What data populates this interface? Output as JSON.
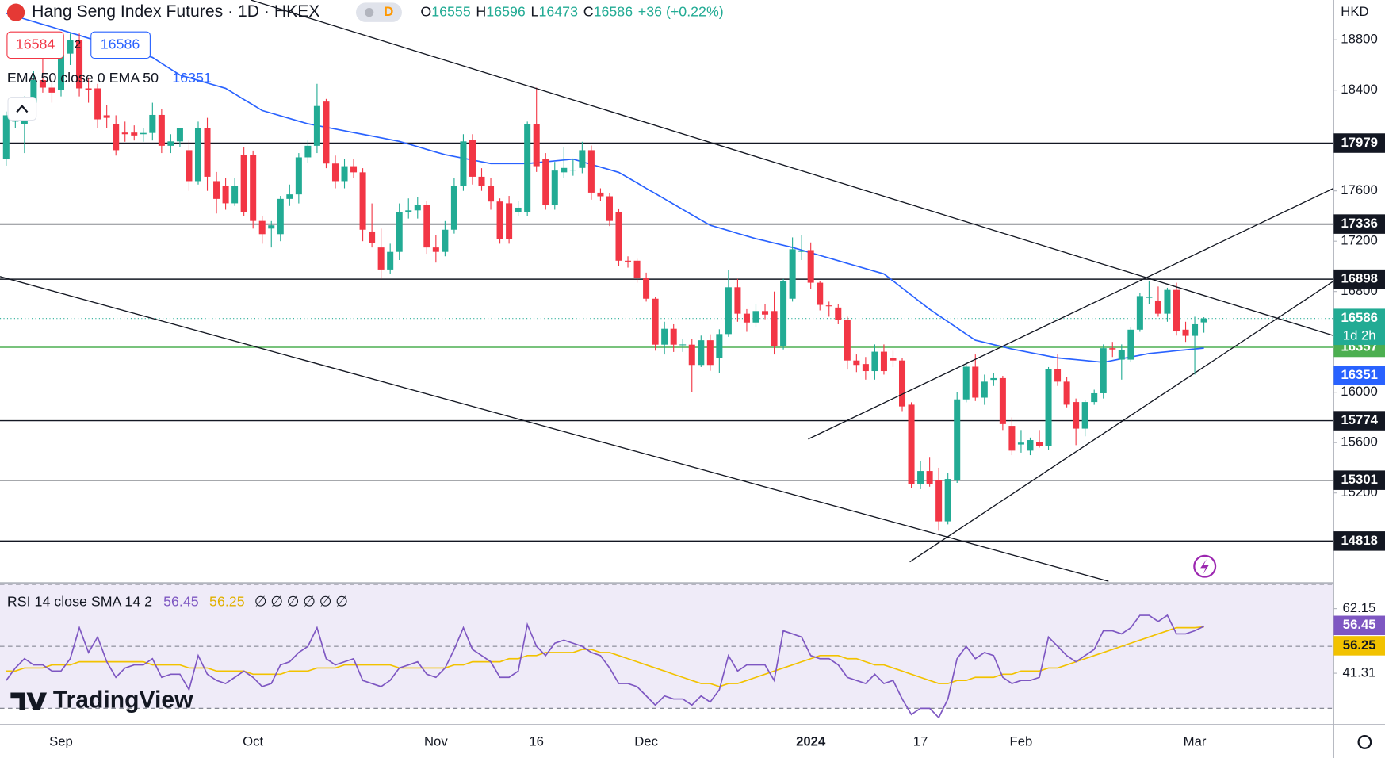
{
  "chart_data": {
    "type": "candlestick",
    "title": "Hang Seng Index Futures · 1D · HKEX",
    "interval_badge": "D",
    "ohlc_letters": [
      "O",
      "H",
      "L",
      "C"
    ],
    "change": "+36 (+0.22%)",
    "bid": 16584,
    "spread": 2,
    "ask": 16586,
    "currency": "HKD",
    "countdown": "1d 2h",
    "branding": "TradingView",
    "up_color": "#22ab94",
    "down_color": "#f23645",
    "ylim": [
      14498,
      19116
    ],
    "yticks": [
      18800,
      18400,
      17600,
      17200,
      16800,
      16000,
      15600,
      15200
    ],
    "levels": [
      17979,
      17336,
      16898,
      15774,
      15301,
      14818
    ],
    "level_color": "#131722",
    "support": 16357,
    "support_color": "#4caf50",
    "categories": [
      null,
      null,
      null,
      null,
      null,
      null,
      "Sep",
      null,
      null,
      null,
      null,
      null,
      null,
      null,
      null,
      null,
      null,
      null,
      null,
      null,
      null,
      null,
      null,
      null,
      null,
      null,
      null,
      "Oct",
      null,
      null,
      null,
      null,
      null,
      null,
      null,
      null,
      null,
      null,
      null,
      null,
      null,
      null,
      null,
      null,
      null,
      null,
      null,
      "Nov",
      null,
      null,
      null,
      null,
      null,
      null,
      null,
      null,
      null,
      null,
      "16",
      null,
      null,
      null,
      null,
      null,
      null,
      null,
      null,
      null,
      null,
      null,
      "Dec",
      null,
      null,
      null,
      null,
      null,
      null,
      null,
      null,
      null,
      null,
      null,
      null,
      null,
      null,
      null,
      null,
      null,
      "2024",
      null,
      null,
      null,
      null,
      null,
      null,
      null,
      null,
      null,
      null,
      null,
      "17",
      null,
      null,
      null,
      null,
      null,
      null,
      null,
      null,
      null,
      null,
      "Feb",
      null,
      null,
      null,
      null,
      null,
      null,
      null,
      null,
      null,
      null,
      null,
      null,
      null,
      null,
      null,
      null,
      null,
      null,
      "Mar",
      null
    ],
    "ohlc": [
      [
        17850,
        18230,
        17800,
        18200
      ],
      [
        18150,
        18300,
        18100,
        18250
      ],
      [
        18130,
        18350,
        17900,
        18300
      ],
      [
        18300,
        18550,
        18250,
        18480
      ],
      [
        18480,
        18650,
        18380,
        18420
      ],
      [
        18420,
        18500,
        18300,
        18380
      ],
      [
        18400,
        18720,
        18350,
        18680
      ],
      [
        18690,
        18850,
        18600,
        18800
      ],
      [
        18800,
        18850,
        18350,
        18414
      ],
      [
        18414,
        18500,
        18300,
        18400
      ],
      [
        18414,
        18450,
        18100,
        18168
      ],
      [
        18200,
        18280,
        18100,
        18180
      ],
      [
        18133,
        18200,
        17880,
        17923
      ],
      [
        18063,
        18150,
        17990,
        18050
      ],
      [
        18063,
        18120,
        18000,
        18040
      ],
      [
        18050,
        18100,
        17990,
        18060
      ],
      [
        18060,
        18300,
        18000,
        18203
      ],
      [
        18203,
        18250,
        17900,
        17958
      ],
      [
        17958,
        18050,
        17900,
        17993
      ],
      [
        17993,
        18100,
        17950,
        18098
      ],
      [
        17923,
        18000,
        17600,
        17677
      ],
      [
        17677,
        18150,
        17650,
        18098
      ],
      [
        18098,
        18180,
        17600,
        17712
      ],
      [
        17677,
        17750,
        17420,
        17536
      ],
      [
        17642,
        17700,
        17450,
        17501
      ],
      [
        17501,
        17700,
        17480,
        17642
      ],
      [
        17887,
        17950,
        17400,
        17431
      ],
      [
        17887,
        17920,
        17300,
        17361
      ],
      [
        17361,
        17400,
        17180,
        17256
      ],
      [
        17300,
        17360,
        17150,
        17326
      ],
      [
        17256,
        17560,
        17200,
        17536
      ],
      [
        17536,
        17650,
        17480,
        17572
      ],
      [
        17572,
        17900,
        17500,
        17866
      ],
      [
        17866,
        18000,
        17820,
        17958
      ],
      [
        17958,
        18450,
        17900,
        18274
      ],
      [
        18309,
        18330,
        17780,
        17817
      ],
      [
        17817,
        17880,
        17620,
        17677
      ],
      [
        17677,
        17850,
        17620,
        17796
      ],
      [
        17796,
        17850,
        17700,
        17747
      ],
      [
        17747,
        17780,
        17200,
        17291
      ],
      [
        17277,
        17500,
        17150,
        17185
      ],
      [
        17150,
        17300,
        16900,
        16975
      ],
      [
        16975,
        17180,
        16940,
        17115
      ],
      [
        17115,
        17500,
        17050,
        17431
      ],
      [
        17431,
        17540,
        17380,
        17445
      ],
      [
        17445,
        17550,
        17380,
        17487
      ],
      [
        17487,
        17520,
        17100,
        17150
      ],
      [
        17150,
        17250,
        17030,
        17115
      ],
      [
        17115,
        17360,
        17080,
        17291
      ],
      [
        17291,
        17700,
        17260,
        17642
      ],
      [
        17642,
        18050,
        17600,
        17993
      ],
      [
        18007,
        18050,
        17650,
        17712
      ],
      [
        17712,
        17780,
        17600,
        17642
      ],
      [
        17642,
        17700,
        17450,
        17515
      ],
      [
        17515,
        17540,
        17180,
        17220
      ],
      [
        17501,
        17560,
        17180,
        17220
      ],
      [
        17431,
        17520,
        17400,
        17466
      ],
      [
        17431,
        18150,
        17400,
        18133
      ],
      [
        18133,
        18420,
        17750,
        17796
      ],
      [
        17852,
        17900,
        17450,
        17487
      ],
      [
        17487,
        17830,
        17450,
        17761
      ],
      [
        17747,
        17950,
        17700,
        17782
      ],
      [
        17768,
        17850,
        17720,
        17768
      ],
      [
        17782,
        17990,
        17740,
        17923
      ],
      [
        17923,
        17960,
        17530,
        17586
      ],
      [
        17586,
        17620,
        17520,
        17557
      ],
      [
        17557,
        17580,
        17320,
        17361
      ],
      [
        17431,
        17460,
        17000,
        17045
      ],
      [
        17045,
        17080,
        16990,
        17040
      ],
      [
        17045,
        17060,
        16870,
        16905
      ],
      [
        16905,
        16950,
        16720,
        16743
      ],
      [
        16743,
        16760,
        16330,
        16378
      ],
      [
        16378,
        16560,
        16300,
        16504
      ],
      [
        16504,
        16540,
        16320,
        16378
      ],
      [
        16378,
        16420,
        16320,
        16380
      ],
      [
        16378,
        16420,
        16000,
        16217
      ],
      [
        16217,
        16450,
        16200,
        16413
      ],
      [
        16413,
        16460,
        16170,
        16217
      ],
      [
        16273,
        16500,
        16150,
        16462
      ],
      [
        16462,
        16970,
        16440,
        16834
      ],
      [
        16834,
        16900,
        16560,
        16624
      ],
      [
        16624,
        16660,
        16480,
        16554
      ],
      [
        16554,
        16700,
        16520,
        16645
      ],
      [
        16645,
        16700,
        16580,
        16617
      ],
      [
        16645,
        16800,
        16300,
        16364
      ],
      [
        16364,
        16900,
        16340,
        16884
      ],
      [
        16743,
        17230,
        16720,
        17136
      ],
      [
        17115,
        17250,
        17050,
        17122
      ],
      [
        17129,
        17190,
        16820,
        16870
      ],
      [
        16870,
        16880,
        16650,
        16694
      ],
      [
        16690,
        16720,
        16600,
        16687
      ],
      [
        16673,
        16700,
        16540,
        16575
      ],
      [
        16575,
        16600,
        16180,
        16252
      ],
      [
        16252,
        16300,
        16160,
        16217
      ],
      [
        16224,
        16280,
        16100,
        16168
      ],
      [
        16168,
        16380,
        16100,
        16322
      ],
      [
        16322,
        16380,
        16140,
        16168
      ],
      [
        16273,
        16330,
        16200,
        16252
      ],
      [
        16252,
        16270,
        15850,
        15887
      ],
      [
        15901,
        15920,
        15240,
        15269
      ],
      [
        15269,
        15450,
        15230,
        15374
      ],
      [
        15374,
        15480,
        15250,
        15269
      ],
      [
        15304,
        15400,
        14900,
        14974
      ],
      [
        14974,
        15360,
        14950,
        15311
      ],
      [
        15304,
        16000,
        15280,
        15943
      ],
      [
        15943,
        16240,
        15920,
        16203
      ],
      [
        16203,
        16300,
        15930,
        15957
      ],
      [
        15957,
        16140,
        15900,
        16084
      ],
      [
        16098,
        16150,
        16050,
        16112
      ],
      [
        16112,
        16130,
        15700,
        15747
      ],
      [
        15733,
        15800,
        15500,
        15536
      ],
      [
        15585,
        15700,
        15520,
        15600
      ],
      [
        15536,
        15640,
        15500,
        15620
      ],
      [
        15606,
        15700,
        15560,
        15571
      ],
      [
        15571,
        16200,
        15540,
        16182
      ],
      [
        16182,
        16300,
        16050,
        16084
      ],
      [
        16084,
        16120,
        15880,
        15901
      ],
      [
        15922,
        15950,
        15580,
        15711
      ],
      [
        15711,
        15940,
        15650,
        15922
      ],
      [
        15922,
        16020,
        15900,
        15992
      ],
      [
        15992,
        16380,
        15950,
        16350
      ],
      [
        16350,
        16400,
        16280,
        16340
      ],
      [
        16259,
        16380,
        16100,
        16336
      ],
      [
        16259,
        16520,
        16240,
        16497
      ],
      [
        16497,
        16790,
        16480,
        16764
      ],
      [
        16757,
        16880,
        16700,
        16757
      ],
      [
        16729,
        16840,
        16600,
        16624
      ],
      [
        16624,
        16830,
        16560,
        16813
      ],
      [
        16813,
        16870,
        16450,
        16483
      ],
      [
        16497,
        16560,
        16400,
        16448
      ],
      [
        16448,
        16600,
        16140,
        16540
      ],
      [
        16555,
        16596,
        16473,
        16586
      ]
    ],
    "ema": {
      "name": "EMA 50 close 0 EMA 50",
      "color": "#2962ff",
      "values": [
        19010,
        18988,
        18966,
        18944,
        18922,
        18901,
        18879,
        18857,
        18835,
        18813,
        18791,
        18769,
        18747,
        18726,
        18704,
        18682,
        18660,
        18613,
        18567,
        18520,
        18499,
        18478,
        18456,
        18435,
        18414,
        18370,
        18326,
        18282,
        18238,
        18217,
        18196,
        18175,
        18154,
        18133,
        18119,
        18105,
        18091,
        18077,
        18063,
        18049,
        18035,
        18021,
        18007,
        17993,
        17972,
        17951,
        17929,
        17908,
        17887,
        17873,
        17859,
        17845,
        17831,
        17817,
        17817,
        17817,
        17817,
        17817,
        17824,
        17831,
        17838,
        17845,
        17852,
        17831,
        17810,
        17789,
        17768,
        17747,
        17705,
        17663,
        17620,
        17578,
        17536,
        17494,
        17452,
        17410,
        17368,
        17326,
        17305,
        17284,
        17262,
        17241,
        17220,
        17203,
        17185,
        17168,
        17150,
        17129,
        17108,
        17087,
        17066,
        17045,
        17024,
        17003,
        16982,
        16961,
        16940,
        16884,
        16828,
        16771,
        16715,
        16659,
        16610,
        16561,
        16511,
        16462,
        16413,
        16396,
        16378,
        16361,
        16343,
        16329,
        16315,
        16301,
        16287,
        16273,
        16266,
        16259,
        16252,
        16245,
        16238,
        16252,
        16266,
        16280,
        16294,
        16308,
        16315,
        16322,
        16330,
        16337,
        16344,
        16351
      ]
    },
    "rsi": {
      "name": "RSI 14 close SMA 14 2",
      "color": "#7e57c2",
      "values": [
        39,
        43,
        46,
        44,
        44,
        42,
        42,
        46,
        56,
        48,
        53,
        45,
        40,
        43,
        44,
        44,
        46,
        40,
        41,
        41,
        36,
        47,
        41,
        39,
        38,
        40,
        42,
        40,
        37,
        38,
        44,
        45,
        48,
        50,
        56,
        46,
        44,
        45,
        46,
        39,
        38,
        37,
        39,
        43,
        44,
        45,
        41,
        40,
        43,
        49,
        56,
        49,
        47,
        45,
        40,
        40,
        42,
        57,
        50,
        47,
        51,
        52,
        51,
        50,
        48,
        47,
        43,
        38,
        38,
        37,
        34,
        31,
        34,
        33,
        33,
        31,
        34,
        32,
        36,
        47,
        42,
        44,
        44,
        44,
        39,
        55,
        54,
        53,
        47,
        46,
        46,
        44,
        40,
        39,
        38,
        41,
        38,
        39,
        33,
        28,
        30,
        30,
        27,
        33,
        46,
        50,
        46,
        48,
        47,
        40,
        38,
        39,
        39,
        40,
        53,
        50,
        47,
        45,
        47,
        49,
        55,
        55,
        54,
        56,
        60,
        60,
        58,
        60,
        54,
        54,
        55,
        56.45
      ]
    },
    "rsi_sma": {
      "color": "#f2c200",
      "values": [
        42,
        42,
        43,
        43,
        43,
        44,
        44,
        44,
        45,
        45,
        45,
        45,
        45,
        45,
        45,
        45,
        44,
        44,
        44,
        44,
        43,
        43,
        43,
        42,
        42,
        42,
        42,
        41,
        41,
        41,
        41,
        42,
        42,
        42,
        43,
        43,
        43,
        44,
        44,
        44,
        44,
        44,
        44,
        43,
        43,
        43,
        43,
        43,
        43,
        44,
        44,
        45,
        45,
        45,
        45,
        46,
        46,
        47,
        47,
        48,
        48,
        48,
        48,
        49,
        49,
        48,
        48,
        47,
        46,
        45,
        44,
        43,
        42,
        41,
        40,
        39,
        38,
        38,
        37,
        38,
        38,
        39,
        40,
        41,
        42,
        43,
        44,
        45,
        46,
        47,
        47,
        47,
        46,
        46,
        45,
        44,
        44,
        43,
        42,
        41,
        40,
        39,
        38,
        38,
        39,
        39,
        40,
        40,
        40,
        41,
        41,
        42,
        42,
        42,
        43,
        43,
        44,
        45,
        46,
        47,
        48,
        49,
        50,
        51,
        52,
        53,
        54,
        55,
        56,
        56,
        56,
        56.25
      ]
    },
    "rsi_extra": "∅ ∅ ∅ ∅ ∅ ∅",
    "rsi_ylim": [
      24.8,
      70.4
    ],
    "rsi_yticks": [
      62.15,
      41.31
    ],
    "rsi_bands": [
      30,
      50,
      70
    ]
  }
}
